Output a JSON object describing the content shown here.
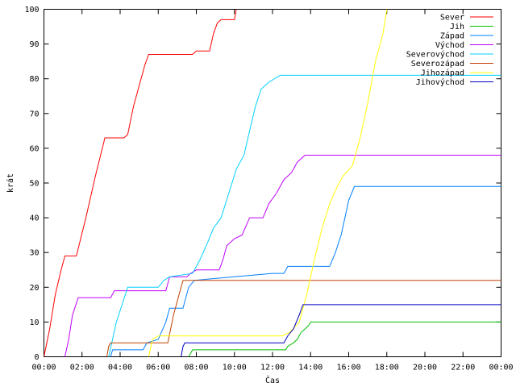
{
  "chart_data": {
    "type": "line",
    "title": "",
    "xlabel": "Čas",
    "ylabel": "krát",
    "xlim": [
      0,
      24
    ],
    "ylim": [
      0,
      100
    ],
    "x_ticks": [
      {
        "value": 0,
        "label": "00:00"
      },
      {
        "value": 2,
        "label": "02:00"
      },
      {
        "value": 4,
        "label": "04:00"
      },
      {
        "value": 6,
        "label": "06:00"
      },
      {
        "value": 8,
        "label": "08:00"
      },
      {
        "value": 10,
        "label": "10:00"
      },
      {
        "value": 12,
        "label": "12:00"
      },
      {
        "value": 14,
        "label": "14:00"
      },
      {
        "value": 16,
        "label": "16:00"
      },
      {
        "value": 18,
        "label": "18:00"
      },
      {
        "value": 20,
        "label": "20:00"
      },
      {
        "value": 22,
        "label": "22:00"
      },
      {
        "value": 24,
        "label": "00:00"
      }
    ],
    "y_ticks": [
      0,
      10,
      20,
      30,
      40,
      50,
      60,
      70,
      80,
      90,
      100
    ],
    "grid": false,
    "legend_position": "top-right",
    "series": [
      {
        "name": "Sever",
        "color": "#ff0000",
        "points": [
          [
            0,
            0
          ],
          [
            0.3,
            8
          ],
          [
            0.6,
            18
          ],
          [
            0.9,
            25
          ],
          [
            1.1,
            29
          ],
          [
            1.7,
            29
          ],
          [
            2.2,
            40
          ],
          [
            2.7,
            52
          ],
          [
            3.2,
            63
          ],
          [
            4.2,
            63
          ],
          [
            4.4,
            64
          ],
          [
            4.7,
            72
          ],
          [
            5.0,
            78
          ],
          [
            5.3,
            84
          ],
          [
            5.5,
            87
          ],
          [
            7.8,
            87
          ],
          [
            8.0,
            88
          ],
          [
            8.7,
            88
          ],
          [
            8.9,
            93
          ],
          [
            9.1,
            96
          ],
          [
            9.3,
            97
          ],
          [
            10.0,
            97
          ],
          [
            10.1,
            100
          ]
        ]
      },
      {
        "name": "Jih",
        "color": "#00c000",
        "points": [
          [
            7.6,
            0
          ],
          [
            7.7,
            1
          ],
          [
            7.8,
            2
          ],
          [
            12.7,
            2
          ],
          [
            12.8,
            3
          ],
          [
            13.1,
            4
          ],
          [
            13.3,
            5
          ],
          [
            13.5,
            7
          ],
          [
            13.7,
            8
          ],
          [
            13.9,
            9
          ],
          [
            14.0,
            10
          ],
          [
            24,
            10
          ]
        ]
      },
      {
        "name": "Západ",
        "color": "#0080ff",
        "points": [
          [
            3.5,
            0
          ],
          [
            3.6,
            2
          ],
          [
            3.7,
            2
          ],
          [
            5.2,
            2
          ],
          [
            5.4,
            4
          ],
          [
            6.0,
            5
          ],
          [
            6.4,
            10
          ],
          [
            6.6,
            14
          ],
          [
            7.3,
            14
          ],
          [
            7.6,
            20
          ],
          [
            7.9,
            22
          ],
          [
            12.0,
            24
          ],
          [
            12.6,
            24
          ],
          [
            12.8,
            26
          ],
          [
            15.0,
            26
          ],
          [
            15.3,
            30
          ],
          [
            15.6,
            35
          ],
          [
            15.8,
            40
          ],
          [
            16.0,
            45
          ],
          [
            16.3,
            49
          ],
          [
            24,
            49
          ]
        ]
      },
      {
        "name": "Východ",
        "color": "#c000ff",
        "points": [
          [
            1.1,
            0
          ],
          [
            1.3,
            5
          ],
          [
            1.5,
            12
          ],
          [
            1.8,
            17
          ],
          [
            3.5,
            17
          ],
          [
            3.7,
            19
          ],
          [
            6.4,
            19
          ],
          [
            6.6,
            23
          ],
          [
            7.5,
            23
          ],
          [
            7.7,
            24
          ],
          [
            8.0,
            25
          ],
          [
            9.2,
            25
          ],
          [
            9.4,
            28
          ],
          [
            9.6,
            32
          ],
          [
            10.0,
            34
          ],
          [
            10.4,
            35
          ],
          [
            10.8,
            40
          ],
          [
            11.5,
            40
          ],
          [
            11.8,
            44
          ],
          [
            12.2,
            47
          ],
          [
            12.6,
            51
          ],
          [
            13.0,
            53
          ],
          [
            13.3,
            56
          ],
          [
            13.7,
            58
          ],
          [
            24,
            58
          ]
        ]
      },
      {
        "name": "Severovýchod",
        "color": "#00d0ff",
        "points": [
          [
            3.4,
            0
          ],
          [
            3.6,
            5
          ],
          [
            3.8,
            10
          ],
          [
            4.1,
            15
          ],
          [
            4.4,
            20
          ],
          [
            6.0,
            20
          ],
          [
            6.3,
            22
          ],
          [
            6.6,
            23
          ],
          [
            7.8,
            24
          ],
          [
            8.2,
            28
          ],
          [
            8.6,
            33
          ],
          [
            8.9,
            37
          ],
          [
            9.3,
            40
          ],
          [
            9.7,
            47
          ],
          [
            10.1,
            54
          ],
          [
            10.5,
            58
          ],
          [
            10.8,
            65
          ],
          [
            11.1,
            72
          ],
          [
            11.4,
            77
          ],
          [
            11.8,
            79
          ],
          [
            12.4,
            81
          ],
          [
            24,
            81
          ]
        ]
      },
      {
        "name": "Severozápad",
        "color": "#c04000",
        "points": [
          [
            3.3,
            0
          ],
          [
            3.4,
            3
          ],
          [
            3.5,
            4
          ],
          [
            6.5,
            4
          ],
          [
            6.8,
            12
          ],
          [
            7.1,
            18
          ],
          [
            7.3,
            22
          ],
          [
            24,
            22
          ]
        ]
      },
      {
        "name": "Jihozápad",
        "color": "#ffff00",
        "points": [
          [
            5.5,
            0
          ],
          [
            5.7,
            5
          ],
          [
            6.0,
            6
          ],
          [
            12.5,
            6
          ],
          [
            12.9,
            7
          ],
          [
            13.4,
            10
          ],
          [
            13.8,
            18
          ],
          [
            14.2,
            28
          ],
          [
            14.6,
            37
          ],
          [
            15.0,
            44
          ],
          [
            15.4,
            49
          ],
          [
            15.7,
            52
          ],
          [
            16.2,
            55
          ],
          [
            16.6,
            63
          ],
          [
            17.0,
            73
          ],
          [
            17.4,
            85
          ],
          [
            17.8,
            93
          ],
          [
            18.0,
            100
          ]
        ]
      },
      {
        "name": "Jihovýchod",
        "color": "#0000c0",
        "points": [
          [
            7.2,
            0
          ],
          [
            7.3,
            3
          ],
          [
            7.4,
            4
          ],
          [
            12.6,
            4
          ],
          [
            12.8,
            6
          ],
          [
            13.1,
            8
          ],
          [
            13.4,
            12
          ],
          [
            13.6,
            15
          ],
          [
            24,
            15
          ]
        ]
      }
    ]
  }
}
